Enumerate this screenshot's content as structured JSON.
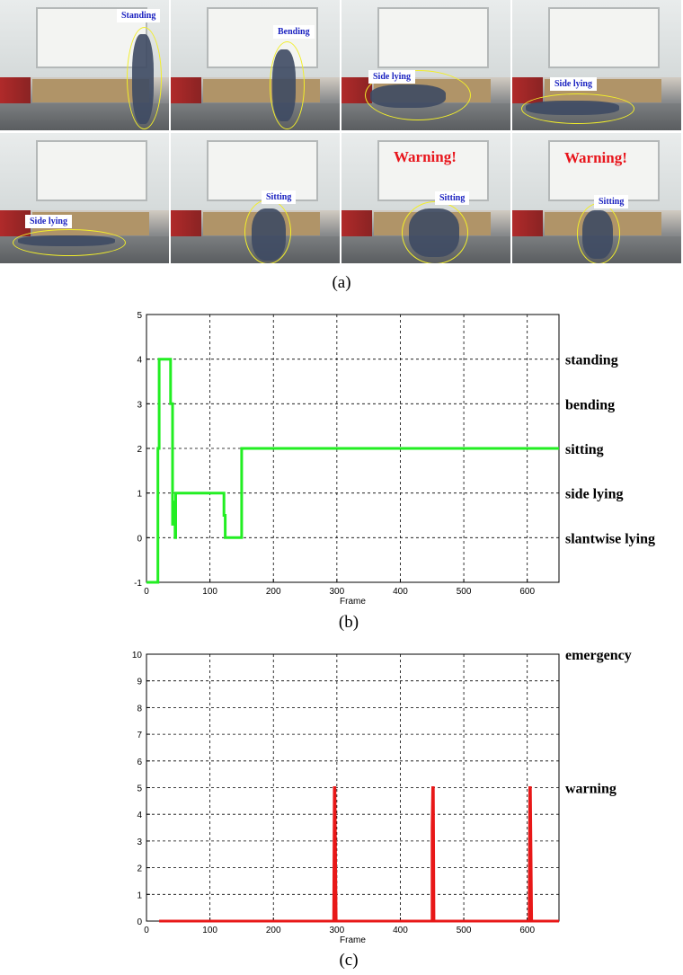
{
  "panel_a": {
    "caption": "(a)",
    "frames": [
      {
        "label": "Standing",
        "warning": ""
      },
      {
        "label": "Bending",
        "warning": ""
      },
      {
        "label": "Side lying",
        "warning": ""
      },
      {
        "label": "Side lying",
        "warning": ""
      },
      {
        "label": "Side lying",
        "warning": ""
      },
      {
        "label": "Sitting",
        "warning": ""
      },
      {
        "label": "Sitting",
        "warning": "Warning!"
      },
      {
        "label": "Sitting",
        "warning": "Warning!"
      }
    ],
    "colors": {
      "label_text": "#1b22c0",
      "warning_text": "#e8151c",
      "ellipse": "#f2ee2a"
    }
  },
  "chart_data": [
    {
      "type": "line",
      "caption": "(b)",
      "xlabel": "Frame",
      "ylabel": "",
      "xlim": [
        0,
        650
      ],
      "ylim": [
        -1,
        5
      ],
      "xticks": [
        0,
        100,
        200,
        300,
        400,
        500,
        600
      ],
      "yticks": [
        -1,
        0,
        1,
        2,
        3,
        4,
        5
      ],
      "grid": true,
      "state_labels": [
        {
          "y": 4,
          "text": "standing"
        },
        {
          "y": 3,
          "text": "bending"
        },
        {
          "y": 2,
          "text": "sitting"
        },
        {
          "y": 1,
          "text": "side lying"
        },
        {
          "y": 0,
          "text": "slantwise lying"
        }
      ],
      "series": [
        {
          "color": "#22ee22",
          "points": [
            [
              0,
              -1
            ],
            [
              18,
              -1
            ],
            [
              18,
              2
            ],
            [
              20,
              2
            ],
            [
              20,
              4
            ],
            [
              38,
              4
            ],
            [
              38,
              3
            ],
            [
              41,
              3
            ],
            [
              41,
              0.3
            ],
            [
              43,
              0.3
            ],
            [
              43,
              0.8
            ],
            [
              45,
              0.8
            ],
            [
              45,
              0
            ],
            [
              46,
              0
            ],
            [
              46,
              1
            ],
            [
              122,
              1
            ],
            [
              122,
              0.5
            ],
            [
              124,
              0.5
            ],
            [
              124,
              0
            ],
            [
              150,
              0
            ],
            [
              150,
              2
            ],
            [
              650,
              2
            ]
          ]
        }
      ]
    },
    {
      "type": "line",
      "caption": "(c)",
      "xlabel": "Frame",
      "ylabel": "",
      "xlim": [
        0,
        650
      ],
      "ylim": [
        0,
        10
      ],
      "xticks": [
        0,
        100,
        200,
        300,
        400,
        500,
        600
      ],
      "yticks": [
        0,
        1,
        2,
        3,
        4,
        5,
        6,
        7,
        8,
        9,
        10
      ],
      "grid": true,
      "state_labels": [
        {
          "y": 10,
          "text": "emergency"
        },
        {
          "y": 5,
          "text": "warning"
        }
      ],
      "series": [
        {
          "color": "#e81818",
          "points": [
            [
              20,
              0
            ],
            [
              295,
              0
            ],
            [
              296,
              5
            ],
            [
              297,
              5
            ],
            [
              299,
              0
            ],
            [
              450,
              0
            ],
            [
              450,
              3.5
            ],
            [
              451,
              5
            ],
            [
              452,
              5
            ],
            [
              453,
              0
            ],
            [
              603,
              0
            ],
            [
              604,
              5
            ],
            [
              605,
              5
            ],
            [
              607,
              0
            ],
            [
              650,
              0
            ]
          ]
        }
      ]
    }
  ]
}
